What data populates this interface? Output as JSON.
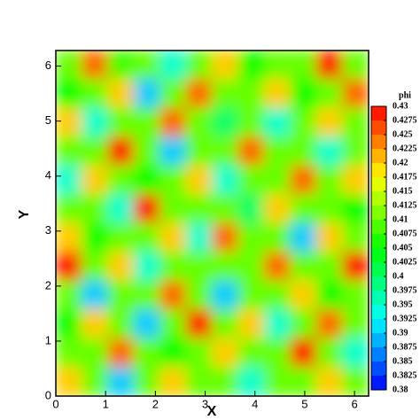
{
  "chart_data": {
    "type": "contour",
    "xlabel": "X",
    "ylabel": "Y",
    "xlim": [
      0,
      6.283
    ],
    "ylim": [
      0,
      6.283
    ],
    "xticks": [
      0,
      1,
      2,
      3,
      4,
      5,
      6
    ],
    "yticks": [
      0,
      1,
      2,
      3,
      4,
      5,
      6
    ],
    "colorbar_title": "phi",
    "levels": [
      0.43,
      0.4275,
      0.425,
      0.4225,
      0.42,
      0.4175,
      0.415,
      0.4125,
      0.41,
      0.4075,
      0.405,
      0.4025,
      0.4,
      0.3975,
      0.395,
      0.3925,
      0.39,
      0.3875,
      0.385,
      0.3825,
      0.38
    ],
    "colormap": [
      "#0000ff",
      "#00ffff",
      "#00ff00",
      "#ffff00",
      "#ff0000"
    ],
    "z": [
      [
        0.41,
        0.425,
        0.408,
        0.41,
        0.395,
        0.41,
        0.42,
        0.405,
        0.41,
        0.41,
        0.43,
        0.41
      ],
      [
        0.405,
        0.41,
        0.42,
        0.39,
        0.41,
        0.425,
        0.41,
        0.41,
        0.42,
        0.405,
        0.41,
        0.425
      ],
      [
        0.42,
        0.395,
        0.41,
        0.41,
        0.425,
        0.41,
        0.4,
        0.41,
        0.395,
        0.41,
        0.42,
        0.41
      ],
      [
        0.41,
        0.41,
        0.43,
        0.41,
        0.39,
        0.41,
        0.41,
        0.425,
        0.41,
        0.41,
        0.395,
        0.41
      ],
      [
        0.395,
        0.42,
        0.41,
        0.405,
        0.41,
        0.42,
        0.395,
        0.41,
        0.41,
        0.425,
        0.41,
        0.42
      ],
      [
        0.41,
        0.41,
        0.395,
        0.43,
        0.41,
        0.41,
        0.41,
        0.4,
        0.42,
        0.41,
        0.41,
        0.405
      ],
      [
        0.42,
        0.405,
        0.41,
        0.41,
        0.42,
        0.395,
        0.425,
        0.41,
        0.41,
        0.39,
        0.42,
        0.41
      ],
      [
        0.43,
        0.41,
        0.42,
        0.395,
        0.41,
        0.41,
        0.41,
        0.41,
        0.425,
        0.41,
        0.41,
        0.43
      ],
      [
        0.41,
        0.39,
        0.41,
        0.41,
        0.425,
        0.41,
        0.39,
        0.41,
        0.41,
        0.42,
        0.405,
        0.41
      ],
      [
        0.405,
        0.42,
        0.41,
        0.39,
        0.41,
        0.43,
        0.41,
        0.42,
        0.395,
        0.41,
        0.425,
        0.41
      ],
      [
        0.41,
        0.41,
        0.425,
        0.41,
        0.405,
        0.41,
        0.42,
        0.41,
        0.41,
        0.43,
        0.41,
        0.395
      ],
      [
        0.42,
        0.41,
        0.39,
        0.41,
        0.42,
        0.41,
        0.41,
        0.395,
        0.41,
        0.41,
        0.42,
        0.41
      ]
    ]
  }
}
